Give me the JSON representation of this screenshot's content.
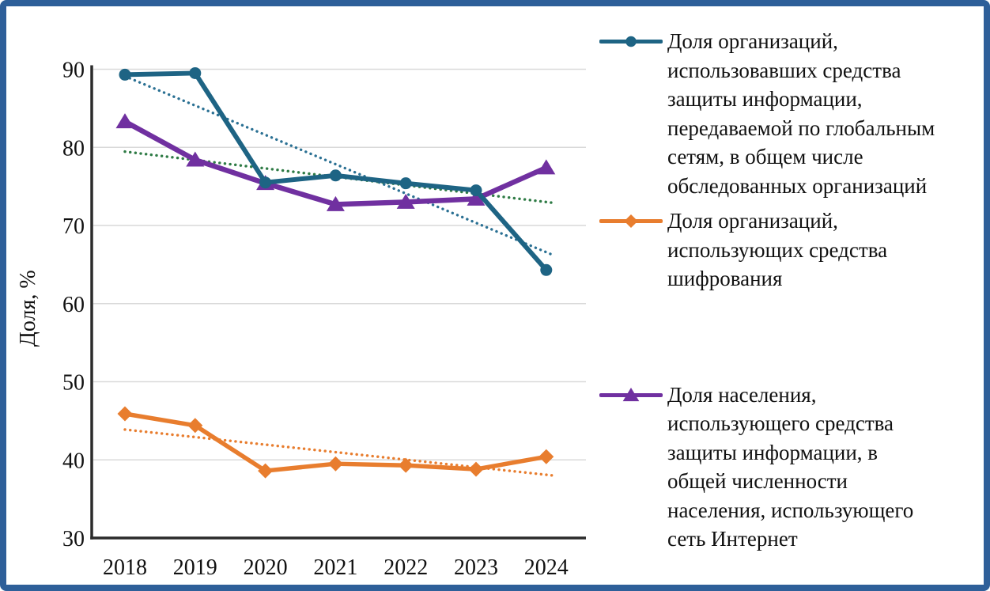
{
  "frame": {
    "border_color": "#2e5f99",
    "background": "#ffffff"
  },
  "chart_data": {
    "type": "line",
    "title": "",
    "x_categories": [
      "2018",
      "2019",
      "2020",
      "2021",
      "2022",
      "2023",
      "2024"
    ],
    "y_axis": {
      "title": "Доля, %",
      "min": 30,
      "max": 90,
      "step": 10,
      "ticks": [
        90,
        80,
        70,
        60,
        50,
        40,
        30
      ]
    },
    "grid": true,
    "legend_position": "right",
    "colors": {
      "gridline": "#d9d9d9",
      "axis": "#2b2b2b",
      "text": "#111111"
    },
    "series": [
      {
        "name": "Доля организаций, использовавших средства защиты информации, передаваемой по глобальным сетям, в общем числе обследованных организаций",
        "values": [
          89.3,
          89.5,
          75.5,
          76.4,
          75.4,
          74.5,
          64.3
        ],
        "color": "#1e6484",
        "marker": "circle",
        "trendline": {
          "type": "linear",
          "style": "dotted",
          "color": "#2a7093"
        }
      },
      {
        "name": "Доля организаций, использующих средства шифрования",
        "values": [
          45.9,
          44.4,
          38.6,
          39.5,
          39.3,
          38.8,
          40.4
        ],
        "color": "#e87d2e",
        "marker": "diamond",
        "trendline": {
          "type": "linear",
          "style": "dotted",
          "color": "#e87d2e"
        }
      },
      {
        "name": "Доля населения, использующего средства защиты информации, в общей численности населения, использующего сеть Интернет",
        "values": [
          83.3,
          78.4,
          75.4,
          72.7,
          73.0,
          73.4,
          77.4
        ],
        "color": "#7030a0",
        "marker": "triangle",
        "trendline": {
          "type": "linear",
          "style": "dotted",
          "color": "#2e7b45"
        }
      }
    ],
    "z_order": [
      1,
      2,
      0
    ]
  },
  "legend": {
    "items": [
      {
        "label": "Доля организаций,\nиспользовавших средства\nзащиты информации,\nпередаваемой по глобальным\nсетям, в общем числе\nобследованных организаций"
      },
      {
        "label": "Доля организаций,\nиспользующих средства\nшифрования"
      },
      {
        "label": "Доля населения,\nиспользующего средства\nзащиты информации, в\nобщей численности\nнаселения, использующего\nсеть Интернет"
      }
    ]
  }
}
